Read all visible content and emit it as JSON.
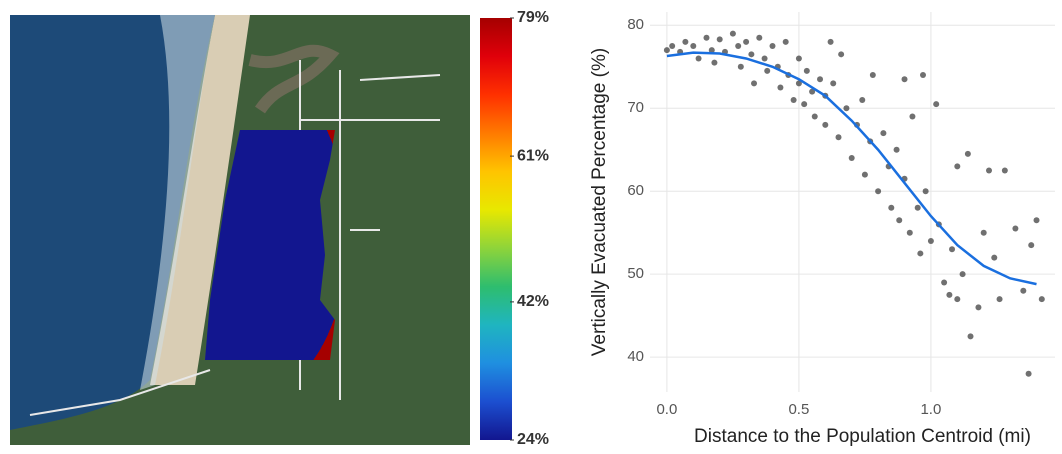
{
  "chart_data": [
    {
      "type": "map",
      "clim": [
        24,
        79
      ],
      "cticks": [
        {
          "value": 24,
          "label": "24%"
        },
        {
          "value": 42,
          "label": "42%"
        },
        {
          "value": 61,
          "label": "61%"
        },
        {
          "value": 79,
          "label": "79%"
        }
      ],
      "colors": [
        "#12168f",
        "#1c4fd0",
        "#1f8fe0",
        "#1fb5c0",
        "#2ebd6e",
        "#8ed43a",
        "#e8e800",
        "#ffc400",
        "#ff7a00",
        "#ff3000",
        "#e0000a",
        "#a50000"
      ]
    },
    {
      "type": "scatter",
      "xlabel": "Distance to the Population Centroid (mi)",
      "ylabel": "Vertically Evacuated Percentage (%)",
      "xlim": [
        -0.064,
        1.47
      ],
      "ylim": [
        35.8,
        81.6
      ],
      "xticks": [
        {
          "value": 0,
          "label": "0.0"
        },
        0.5,
        {
          "value": 1,
          "label": "1.0"
        }
      ],
      "yticks": [
        40,
        50,
        60,
        70,
        80
      ],
      "grid": true,
      "point_color": "#333333",
      "x": [
        0.0,
        0.02,
        0.05,
        0.07,
        0.1,
        0.12,
        0.15,
        0.17,
        0.18,
        0.2,
        0.22,
        0.25,
        0.27,
        0.28,
        0.3,
        0.32,
        0.33,
        0.35,
        0.37,
        0.38,
        0.4,
        0.42,
        0.43,
        0.45,
        0.46,
        0.48,
        0.5,
        0.5,
        0.52,
        0.53,
        0.55,
        0.56,
        0.58,
        0.6,
        0.6,
        0.62,
        0.63,
        0.65,
        0.66,
        0.68,
        0.7,
        0.72,
        0.74,
        0.75,
        0.77,
        0.78,
        0.8,
        0.82,
        0.84,
        0.85,
        0.87,
        0.88,
        0.9,
        0.9,
        0.92,
        0.93,
        0.95,
        0.96,
        0.97,
        0.98,
        1.0,
        1.02,
        1.03,
        1.05,
        1.07,
        1.08,
        1.1,
        1.1,
        1.12,
        1.14,
        1.15,
        1.18,
        1.2,
        1.22,
        1.24,
        1.26,
        1.28,
        1.32,
        1.35,
        1.37,
        1.38,
        1.4,
        1.42
      ],
      "y": [
        77,
        77.5,
        76.8,
        78,
        77.5,
        76,
        78.5,
        77,
        75.5,
        78.3,
        76.8,
        79,
        77.5,
        75,
        78,
        76.5,
        73,
        78.5,
        76,
        74.5,
        77.5,
        75,
        72.5,
        78,
        74,
        71,
        76,
        73,
        70.5,
        74.5,
        72,
        69,
        73.5,
        71.5,
        68,
        78,
        73,
        66.5,
        76.5,
        70,
        64,
        68,
        71,
        62,
        66,
        74,
        60,
        67,
        63,
        58,
        65,
        56.5,
        61.5,
        73.5,
        55,
        69,
        58,
        52.5,
        74,
        60,
        54,
        70.5,
        56,
        49,
        47.5,
        53,
        63,
        47,
        50,
        64.5,
        42.5,
        46,
        55,
        62.5,
        52,
        47,
        62.5,
        55.5,
        48,
        38,
        53.5,
        56.5,
        47
      ],
      "trend": {
        "color": "#1a6fdf",
        "x": [
          0,
          0.1,
          0.2,
          0.3,
          0.4,
          0.5,
          0.6,
          0.7,
          0.8,
          0.9,
          1.0,
          1.1,
          1.2,
          1.3,
          1.4
        ],
        "y": [
          76.3,
          76.7,
          76.6,
          76,
          75,
          73.5,
          71.5,
          68.5,
          65,
          61,
          57,
          53.5,
          51,
          49.5,
          48.8
        ]
      }
    }
  ]
}
